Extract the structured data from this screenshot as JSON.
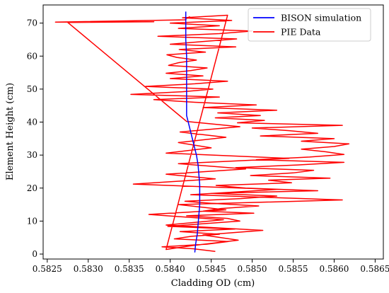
{
  "chart_data": {
    "type": "line",
    "title": "",
    "xlabel": "Cladding OD (cm)",
    "ylabel": "Element Height (cm)",
    "xlim": [
      0.58245,
      0.5866
    ],
    "ylim": [
      -1.5,
      75.5
    ],
    "x_ticks": [
      0.5825,
      0.583,
      0.5835,
      0.584,
      0.5845,
      0.585,
      0.5855,
      0.586,
      0.5865
    ],
    "x_tick_labels": [
      "0.5825",
      "0.5830",
      "0.5835",
      "0.5840",
      "0.5845",
      "0.5850",
      "0.5855",
      "0.5860",
      "0.5865"
    ],
    "y_ticks": [
      0,
      10,
      20,
      30,
      40,
      50,
      60,
      70
    ],
    "y_tick_labels": [
      "0",
      "10",
      "20",
      "30",
      "40",
      "50",
      "60",
      "70"
    ],
    "grid": false,
    "legend": {
      "position": "top-right",
      "entries": [
        "BISON simulation",
        "PIE Data"
      ]
    },
    "series": [
      {
        "name": "BISON simulation",
        "color": "#0000ff",
        "x": [
          0.5843,
          0.58431,
          0.58433,
          0.58434,
          0.58435,
          0.58436,
          0.58436,
          0.58436,
          0.58435,
          0.58434,
          0.58432,
          0.58429,
          0.58426,
          0.58423,
          0.5842,
          0.5842,
          0.5842,
          0.5842,
          0.5842,
          0.5842,
          0.5842,
          0.58419,
          0.58419,
          0.58419
        ],
        "y": [
          0.5,
          3,
          6,
          9,
          12,
          15,
          18,
          21,
          24,
          27,
          30,
          33,
          36,
          39,
          42,
          45,
          48,
          51,
          54,
          57,
          60,
          65,
          70,
          73.5
        ]
      },
      {
        "name": "PIE Data",
        "color": "#ff0000",
        "x": [
          0.58455,
          0.58428,
          0.5839,
          0.58445,
          0.58471,
          0.58405,
          0.58426,
          0.5846,
          0.58412,
          0.58479,
          0.58397,
          0.5844,
          0.58485,
          0.5847,
          0.5842,
          0.58502,
          0.5844,
          0.58462,
          0.58508,
          0.5845,
          0.58418,
          0.58486,
          0.5853,
          0.5845,
          0.5858,
          0.58492,
          0.58456,
          0.58548,
          0.5852,
          0.58595,
          0.58498,
          0.5855,
          0.58575,
          0.5848,
          0.58555,
          0.58612,
          0.58505,
          0.5857,
          0.58612,
          0.5859,
          0.5856,
          0.586,
          0.58618,
          0.5856,
          0.586,
          0.5851,
          0.5858,
          0.58545,
          0.585,
          0.5861,
          0.58482,
          0.58515,
          0.58455,
          0.5851,
          0.58458,
          0.5853,
          0.5844,
          0.58505,
          0.5843,
          0.5838,
          0.5846,
          0.58352,
          0.58415,
          0.58452,
          0.5837,
          0.5843,
          0.5847,
          0.584,
          0.5844,
          0.58395,
          0.58425,
          0.58445,
          0.58398,
          0.5841,
          0.58432,
          0.58408,
          0.58396,
          0.58443,
          0.58411,
          0.5848,
          0.584,
          0.58439,
          0.58481,
          0.58385,
          0.5846,
          0.585,
          0.5841,
          0.5846,
          0.584,
          0.58475,
          0.58415,
          0.5847,
          0.58395,
          0.58428,
          0.58483,
          0.5844,
          0.58513,
          0.58395,
          0.58465,
          0.58374,
          0.58468,
          0.5841,
          0.5861,
          0.58425,
          0.5853,
          0.58355,
          0.58455,
          0.58395,
          0.58492,
          0.5841,
          0.58545,
          0.58395,
          0.5845,
          0.5841,
          0.58468,
          0.58412,
          0.58485,
          0.5842,
          0.58275,
          0.5838,
          0.5826,
          0.58418,
          0.58424
        ],
        "y": [
          0.8,
          1.6,
          2.2,
          3.0,
          3.8,
          4.6,
          5.4,
          6.0,
          6.8,
          7.6,
          8.4,
          9.2,
          10.0,
          10.8,
          11.6,
          12.4,
          13.0,
          13.8,
          14.6,
          15.4,
          16.0,
          16.8,
          17.6,
          18.4,
          19.2,
          20.0,
          20.8,
          21.6,
          22.4,
          23.0,
          23.8,
          24.6,
          25.4,
          26.2,
          27.0,
          27.8,
          28.6,
          29.4,
          30.2,
          31.0,
          31.8,
          32.6,
          33.4,
          34.2,
          35.0,
          35.8,
          36.6,
          37.4,
          38.2,
          39.0,
          39.8,
          40.5,
          41.3,
          42.0,
          42.8,
          43.6,
          44.4,
          45.2,
          46.0,
          46.8,
          47.6,
          48.4,
          49.2,
          50.0,
          50.8,
          51.6,
          52.4,
          53.2,
          54.0,
          54.8,
          55.6,
          56.4,
          57.2,
          58.0,
          58.8,
          59.6,
          60.4,
          61.2,
          62.0,
          62.8,
          63.6,
          64.4,
          65.2,
          66.0,
          66.8,
          67.6,
          68.4,
          69.2,
          70.0,
          70.8,
          71.6,
          72.4,
          1.4,
          2.6,
          4.2,
          5.8,
          7.2,
          8.8,
          10.4,
          12.0,
          13.4,
          15.0,
          16.4,
          18.0,
          19.6,
          21.2,
          22.8,
          24.2,
          25.8,
          27.4,
          29.0,
          30.6,
          32.2,
          33.8,
          35.4,
          37.0,
          38.6,
          40.2,
          70.2,
          70.4,
          70.3,
          71.0,
          72.0
        ]
      }
    ]
  }
}
